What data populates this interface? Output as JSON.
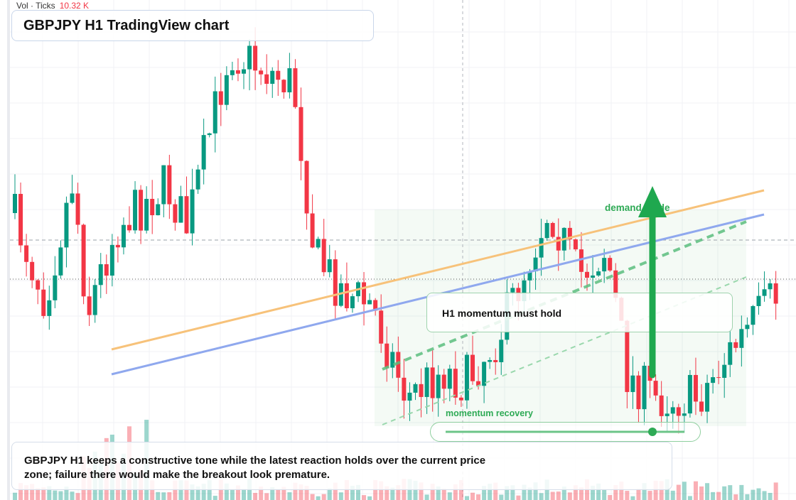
{
  "header": {
    "volume_label": "Vol · Ticks",
    "volume_value": "10.32 K"
  },
  "title": "GBPJPY H1 TradingView chart",
  "annotations": {
    "demand_guide": "demand guide",
    "callout": "H1 momentum must hold",
    "indicator": "momentum recovery"
  },
  "caption": "GBPJPY H1 keeps a constructive tone while the latest reaction holds over the current price zone; failure there would make the breakout look premature."
}
